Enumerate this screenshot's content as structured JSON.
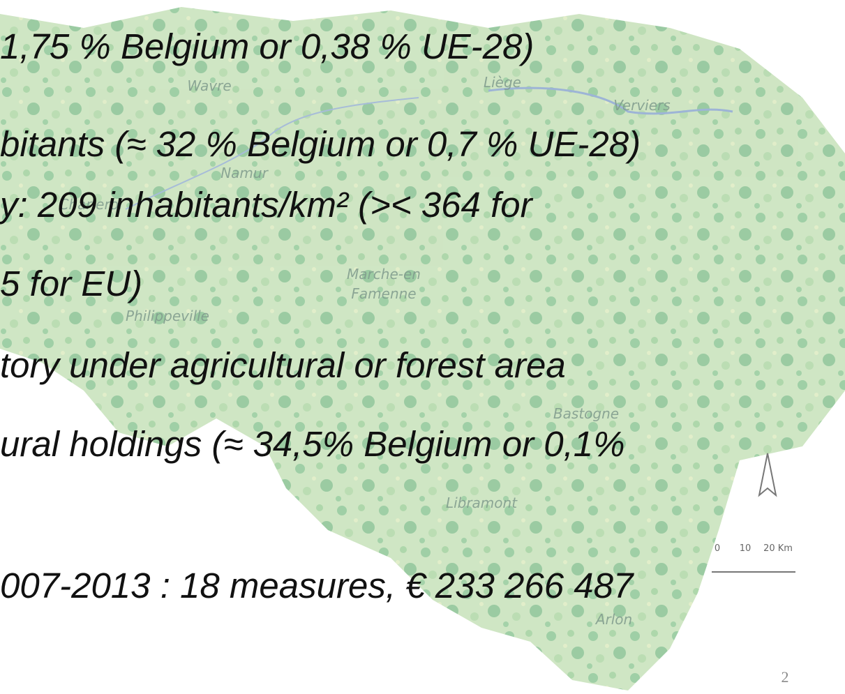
{
  "slide": {
    "lines": [
      "1,75 % Belgium or 0,38 % UE-28)",
      "bitants (≈ 32 % Belgium or 0,7 % UE-28)",
      "y: 209 inhabitants/km² (>< 364 for",
      "5 for EU)",
      "tory under agricultural or forest area",
      "ural holdings (≈ 34,5% Belgium or 0,1%",
      "007-2013 : 18 measures, € 233 266 487"
    ],
    "map_labels": [
      "Wavre",
      "Liège",
      "Verviers",
      "Namur",
      "Charleroi",
      "Marche-en",
      "Famenne",
      "Philippeville",
      "Bastogne",
      "Libramont",
      "Arlon"
    ],
    "scale_labels": [
      "0",
      "10",
      "20 Km"
    ],
    "page_number": "2"
  }
}
